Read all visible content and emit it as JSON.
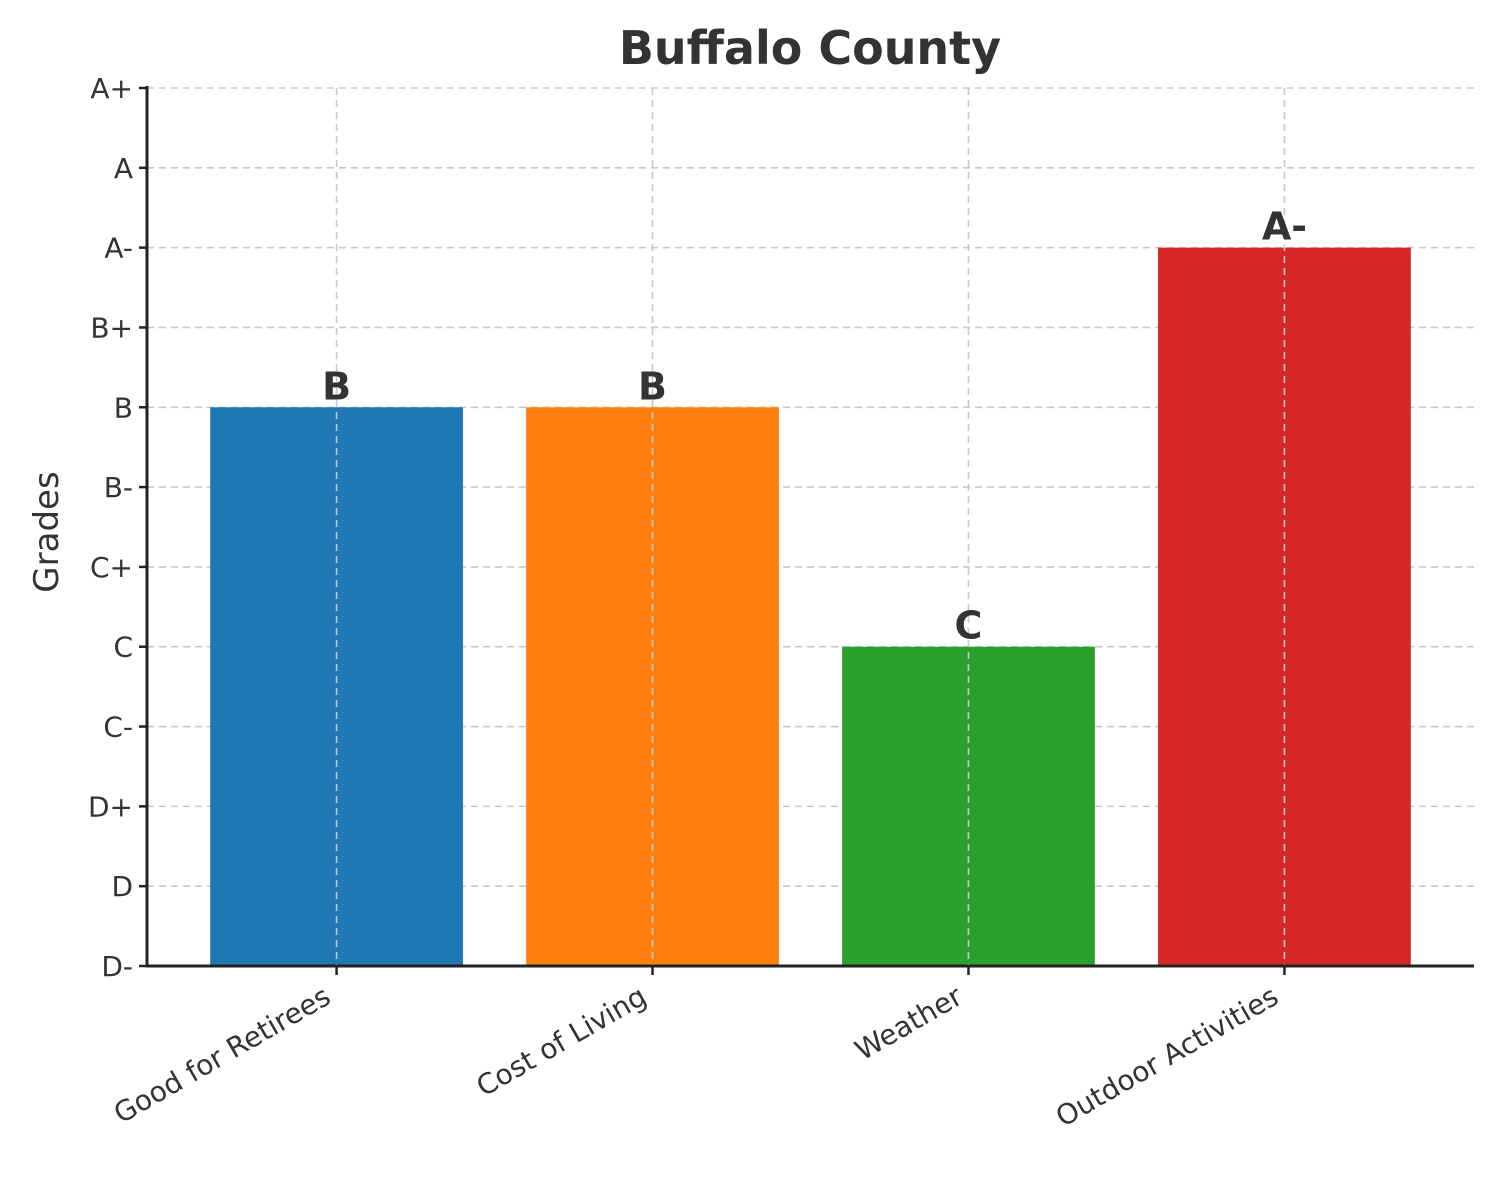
{
  "chart_data": {
    "type": "bar",
    "title": "Buffalo County",
    "xlabel": "",
    "ylabel": "Grades",
    "y_tick_labels": [
      "D-",
      "D",
      "D+",
      "C-",
      "C",
      "C+",
      "B-",
      "B",
      "B+",
      "A-",
      "A",
      "A+"
    ],
    "ylim": [
      "D-",
      "A+"
    ],
    "categories": [
      "Good for Retirees",
      "Cost of Living",
      "Weather",
      "Outdoor Activities"
    ],
    "values": [
      "B",
      "B",
      "C",
      "A-"
    ],
    "colors": [
      "#1f77b4",
      "#ff7f0e",
      "#2ca02c",
      "#d62728"
    ],
    "grid": true,
    "legend": "none"
  }
}
